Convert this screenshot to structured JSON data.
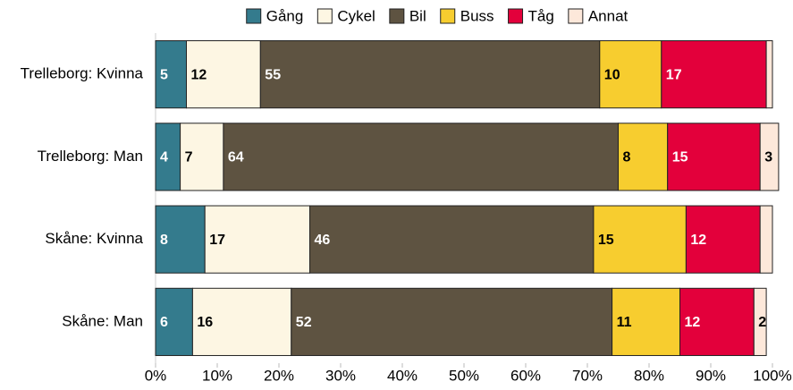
{
  "chart_data": {
    "type": "stacked-bar-horizontal",
    "categories": [
      "Trelleborg: Kvinna",
      "Trelleborg: Man",
      "Skåne: Kvinna",
      "Skåne: Man"
    ],
    "series": [
      {
        "name": "Gång",
        "color": "#347b8d",
        "values": [
          5,
          4,
          8,
          6
        ]
      },
      {
        "name": "Cykel",
        "color": "#fdf6e3",
        "values": [
          12,
          7,
          17,
          16
        ]
      },
      {
        "name": "Bil",
        "color": "#5e5341",
        "values": [
          55,
          64,
          46,
          52
        ]
      },
      {
        "name": "Buss",
        "color": "#f7cd2f",
        "values": [
          10,
          8,
          15,
          11
        ]
      },
      {
        "name": "Tåg",
        "color": "#e3003b",
        "values": [
          17,
          15,
          12,
          12
        ]
      },
      {
        "name": "Annat",
        "color": "#fde8da",
        "values": [
          1,
          3,
          2,
          2
        ],
        "value_labels": [
          null,
          "3",
          null,
          "2"
        ]
      }
    ],
    "xlim": [
      0,
      100
    ],
    "xticks": [
      {
        "value": 0,
        "label": "0%"
      },
      {
        "value": 10,
        "label": "10%"
      },
      {
        "value": 20,
        "label": "20%"
      },
      {
        "value": 30,
        "label": "30%"
      },
      {
        "value": 40,
        "label": "40%"
      },
      {
        "value": 50,
        "label": "50%"
      },
      {
        "value": 60,
        "label": "60%"
      },
      {
        "value": 70,
        "label": "70%"
      },
      {
        "value": 80,
        "label": "80%"
      },
      {
        "value": 90,
        "label": "90%"
      },
      {
        "value": 100,
        "label": "100%"
      }
    ],
    "legend": "top"
  }
}
